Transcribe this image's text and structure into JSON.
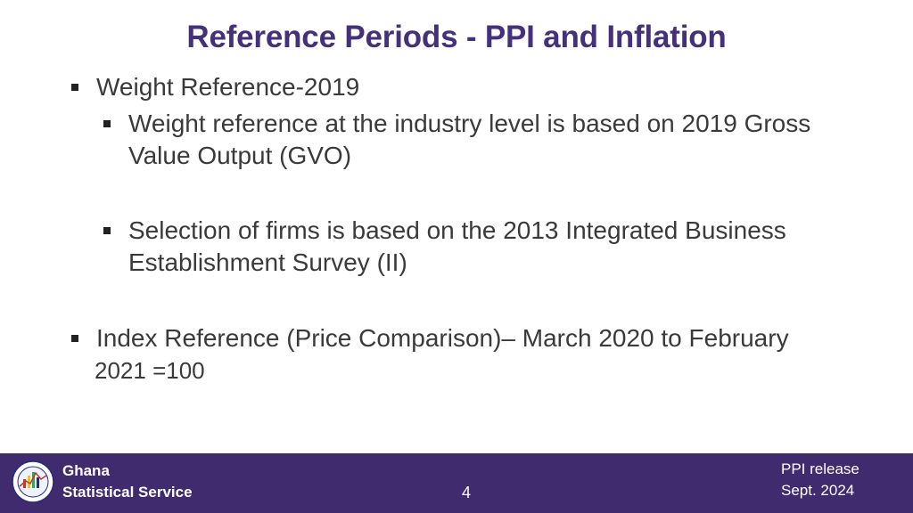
{
  "slide": {
    "title": "Reference Periods - PPI and Inflation",
    "bullets": [
      "Weight Reference-2019",
      "Weight reference at the industry level is based on 2019 Gross Value Output (GVO)",
      "Selection of firms is based on the 2013 Integrated Business Establishment Survey (II)",
      "Index Reference (Price Comparison)– March 2020 to February"
    ],
    "continuation": "2021 =100"
  },
  "footer": {
    "org_line1": "Ghana",
    "org_line2": "Statistical Service",
    "page_number": "4",
    "release_line1": "PPI release",
    "release_line2": "Sept. 2024",
    "background_color": "#3f2b6e"
  },
  "theme": {
    "title_color": "#45307c",
    "text_color": "#3a3a3a"
  }
}
